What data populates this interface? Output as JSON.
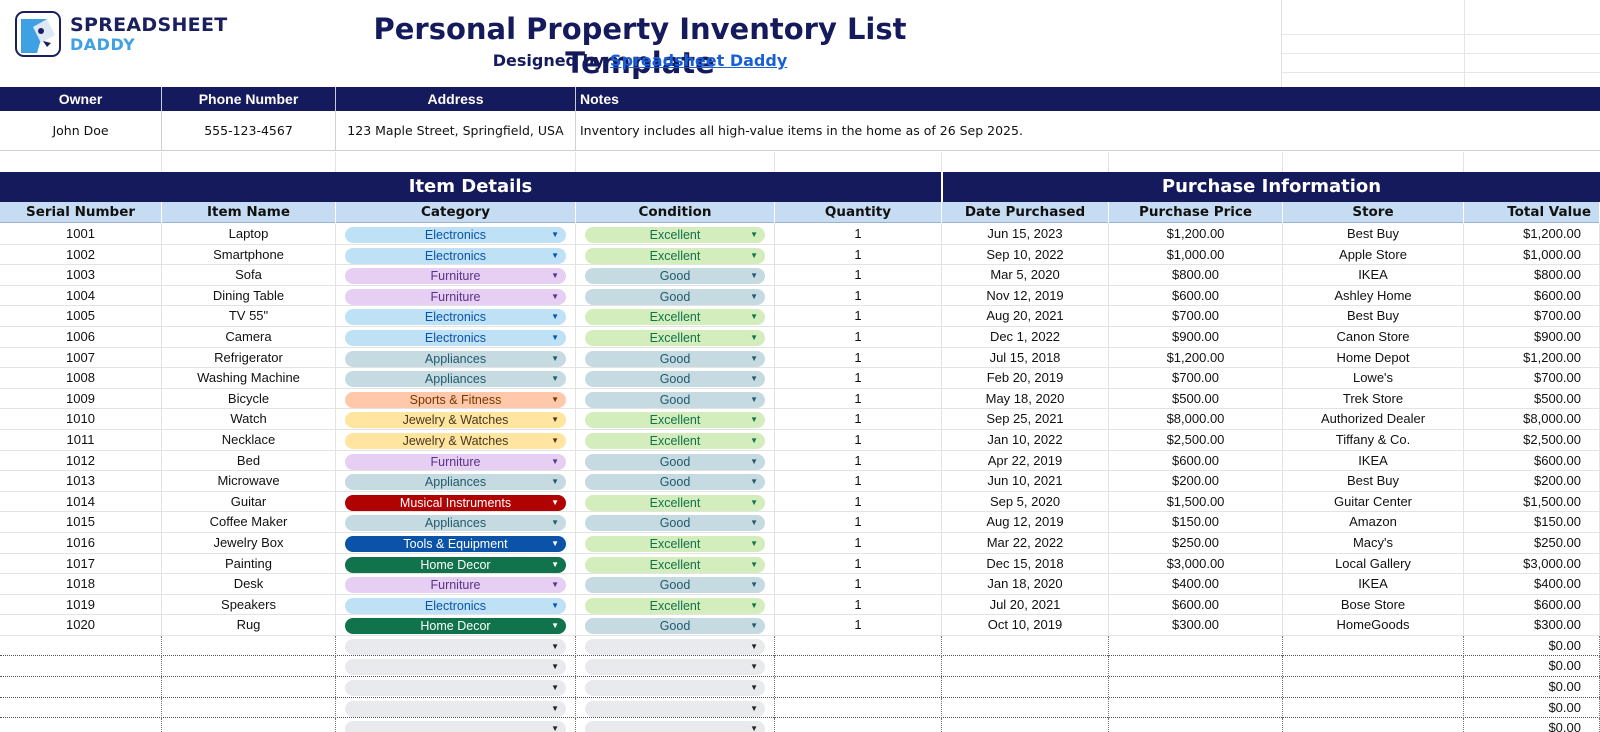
{
  "logo": {
    "line1": "SPREADSHEET",
    "line2": "DADDY"
  },
  "header": {
    "title": "Personal Property Inventory List Template",
    "designed_by": "Designed by",
    "designer_link": "Spreadsheet Daddy"
  },
  "owner_info": {
    "headers": {
      "owner": "Owner",
      "phone": "Phone Number",
      "address": "Address",
      "notes": "Notes"
    },
    "owner": "John Doe",
    "phone": "555-123-4567",
    "address": "123 Maple Street, Springfield, USA",
    "notes": "Inventory includes all high-value items in the home as of 26 Sep 2025."
  },
  "sections": {
    "item_details": "Item Details",
    "purchase_information": "Purchase Information"
  },
  "columns": [
    "Serial Number",
    "Item Name",
    "Category",
    "Condition",
    "Quantity",
    "Date Purchased",
    "Purchase Price",
    "Store",
    "Total Value"
  ],
  "colors": {
    "navy": "#141a5b",
    "header_blue": "#c6dcf3",
    "link": "#1a5fd6",
    "categories": {
      "Electronics": {
        "bg": "#bfe1f6",
        "fg": "#0a53a8"
      },
      "Furniture": {
        "bg": "#e6cff2",
        "fg": "#5a3286"
      },
      "Appliances": {
        "bg": "#c6dbe1",
        "fg": "#215a6c"
      },
      "Sports & Fitness": {
        "bg": "#ffc8aa",
        "fg": "#753800"
      },
      "Jewelry & Watches": {
        "bg": "#ffe5a0",
        "fg": "#473821"
      },
      "Musical Instruments": {
        "bg": "#b10202",
        "fg": "#ffffff"
      },
      "Tools & Equipment": {
        "bg": "#0a53a8",
        "fg": "#ffffff"
      },
      "Home Decor": {
        "bg": "#11734b",
        "fg": "#ffffff"
      },
      "": {
        "bg": "#e8eaed",
        "fg": "#222222"
      }
    },
    "conditions": {
      "Excellent": {
        "bg": "#d4edbc",
        "fg": "#11734b"
      },
      "Good": {
        "bg": "#c6dbe1",
        "fg": "#215a6c"
      },
      "": {
        "bg": "#e8eaed",
        "fg": "#222222"
      }
    }
  },
  "items": [
    {
      "serial": "1001",
      "name": "Laptop",
      "category": "Electronics",
      "condition": "Excellent",
      "qty": "1",
      "date": "Jun 15, 2023",
      "price": "$1,200.00",
      "store": "Best Buy",
      "total": "$1,200.00"
    },
    {
      "serial": "1002",
      "name": "Smartphone",
      "category": "Electronics",
      "condition": "Excellent",
      "qty": "1",
      "date": "Sep 10, 2022",
      "price": "$1,000.00",
      "store": "Apple Store",
      "total": "$1,000.00"
    },
    {
      "serial": "1003",
      "name": "Sofa",
      "category": "Furniture",
      "condition": "Good",
      "qty": "1",
      "date": "Mar 5, 2020",
      "price": "$800.00",
      "store": "IKEA",
      "total": "$800.00"
    },
    {
      "serial": "1004",
      "name": "Dining Table",
      "category": "Furniture",
      "condition": "Good",
      "qty": "1",
      "date": "Nov 12, 2019",
      "price": "$600.00",
      "store": "Ashley Home",
      "total": "$600.00"
    },
    {
      "serial": "1005",
      "name": "TV 55\"",
      "category": "Electronics",
      "condition": "Excellent",
      "qty": "1",
      "date": "Aug 20, 2021",
      "price": "$700.00",
      "store": "Best Buy",
      "total": "$700.00"
    },
    {
      "serial": "1006",
      "name": "Camera",
      "category": "Electronics",
      "condition": "Excellent",
      "qty": "1",
      "date": "Dec 1, 2022",
      "price": "$900.00",
      "store": "Canon Store",
      "total": "$900.00"
    },
    {
      "serial": "1007",
      "name": "Refrigerator",
      "category": "Appliances",
      "condition": "Good",
      "qty": "1",
      "date": "Jul 15, 2018",
      "price": "$1,200.00",
      "store": "Home Depot",
      "total": "$1,200.00"
    },
    {
      "serial": "1008",
      "name": "Washing Machine",
      "category": "Appliances",
      "condition": "Good",
      "qty": "1",
      "date": "Feb 20, 2019",
      "price": "$700.00",
      "store": "Lowe's",
      "total": "$700.00"
    },
    {
      "serial": "1009",
      "name": "Bicycle",
      "category": "Sports & Fitness",
      "condition": "Good",
      "qty": "1",
      "date": "May 18, 2020",
      "price": "$500.00",
      "store": "Trek Store",
      "total": "$500.00"
    },
    {
      "serial": "1010",
      "name": "Watch",
      "category": "Jewelry & Watches",
      "condition": "Excellent",
      "qty": "1",
      "date": "Sep 25, 2021",
      "price": "$8,000.00",
      "store": "Authorized Dealer",
      "total": "$8,000.00"
    },
    {
      "serial": "1011",
      "name": "Necklace",
      "category": "Jewelry & Watches",
      "condition": "Excellent",
      "qty": "1",
      "date": "Jan 10, 2022",
      "price": "$2,500.00",
      "store": "Tiffany & Co.",
      "total": "$2,500.00"
    },
    {
      "serial": "1012",
      "name": "Bed",
      "category": "Furniture",
      "condition": "Good",
      "qty": "1",
      "date": "Apr 22, 2019",
      "price": "$600.00",
      "store": "IKEA",
      "total": "$600.00"
    },
    {
      "serial": "1013",
      "name": "Microwave",
      "category": "Appliances",
      "condition": "Good",
      "qty": "1",
      "date": "Jun 10, 2021",
      "price": "$200.00",
      "store": "Best Buy",
      "total": "$200.00"
    },
    {
      "serial": "1014",
      "name": "Guitar",
      "category": "Musical Instruments",
      "condition": "Excellent",
      "qty": "1",
      "date": "Sep 5, 2020",
      "price": "$1,500.00",
      "store": "Guitar Center",
      "total": "$1,500.00"
    },
    {
      "serial": "1015",
      "name": "Coffee Maker",
      "category": "Appliances",
      "condition": "Good",
      "qty": "1",
      "date": "Aug 12, 2019",
      "price": "$150.00",
      "store": "Amazon",
      "total": "$150.00"
    },
    {
      "serial": "1016",
      "name": "Jewelry Box",
      "category": "Tools & Equipment",
      "condition": "Excellent",
      "qty": "1",
      "date": "Mar 22, 2022",
      "price": "$250.00",
      "store": "Macy's",
      "total": "$250.00"
    },
    {
      "serial": "1017",
      "name": "Painting",
      "category": "Home Decor",
      "condition": "Excellent",
      "qty": "1",
      "date": "Dec 15, 2018",
      "price": "$3,000.00",
      "store": "Local Gallery",
      "total": "$3,000.00"
    },
    {
      "serial": "1018",
      "name": "Desk",
      "category": "Furniture",
      "condition": "Good",
      "qty": "1",
      "date": "Jan 18, 2020",
      "price": "$400.00",
      "store": "IKEA",
      "total": "$400.00"
    },
    {
      "serial": "1019",
      "name": "Speakers",
      "category": "Electronics",
      "condition": "Excellent",
      "qty": "1",
      "date": "Jul 20, 2021",
      "price": "$600.00",
      "store": "Bose Store",
      "total": "$600.00"
    },
    {
      "serial": "1020",
      "name": "Rug",
      "category": "Home Decor",
      "condition": "Good",
      "qty": "1",
      "date": "Oct 10, 2019",
      "price": "$300.00",
      "store": "HomeGoods",
      "total": "$300.00"
    },
    {
      "serial": "",
      "name": "",
      "category": "",
      "condition": "",
      "qty": "",
      "date": "",
      "price": "",
      "store": "",
      "total": "$0.00"
    },
    {
      "serial": "",
      "name": "",
      "category": "",
      "condition": "",
      "qty": "",
      "date": "",
      "price": "",
      "store": "",
      "total": "$0.00"
    },
    {
      "serial": "",
      "name": "",
      "category": "",
      "condition": "",
      "qty": "",
      "date": "",
      "price": "",
      "store": "",
      "total": "$0.00"
    },
    {
      "serial": "",
      "name": "",
      "category": "",
      "condition": "",
      "qty": "",
      "date": "",
      "price": "",
      "store": "",
      "total": "$0.00"
    },
    {
      "serial": "",
      "name": "",
      "category": "",
      "condition": "",
      "qty": "",
      "date": "",
      "price": "",
      "store": "",
      "total": "$0.00"
    }
  ]
}
